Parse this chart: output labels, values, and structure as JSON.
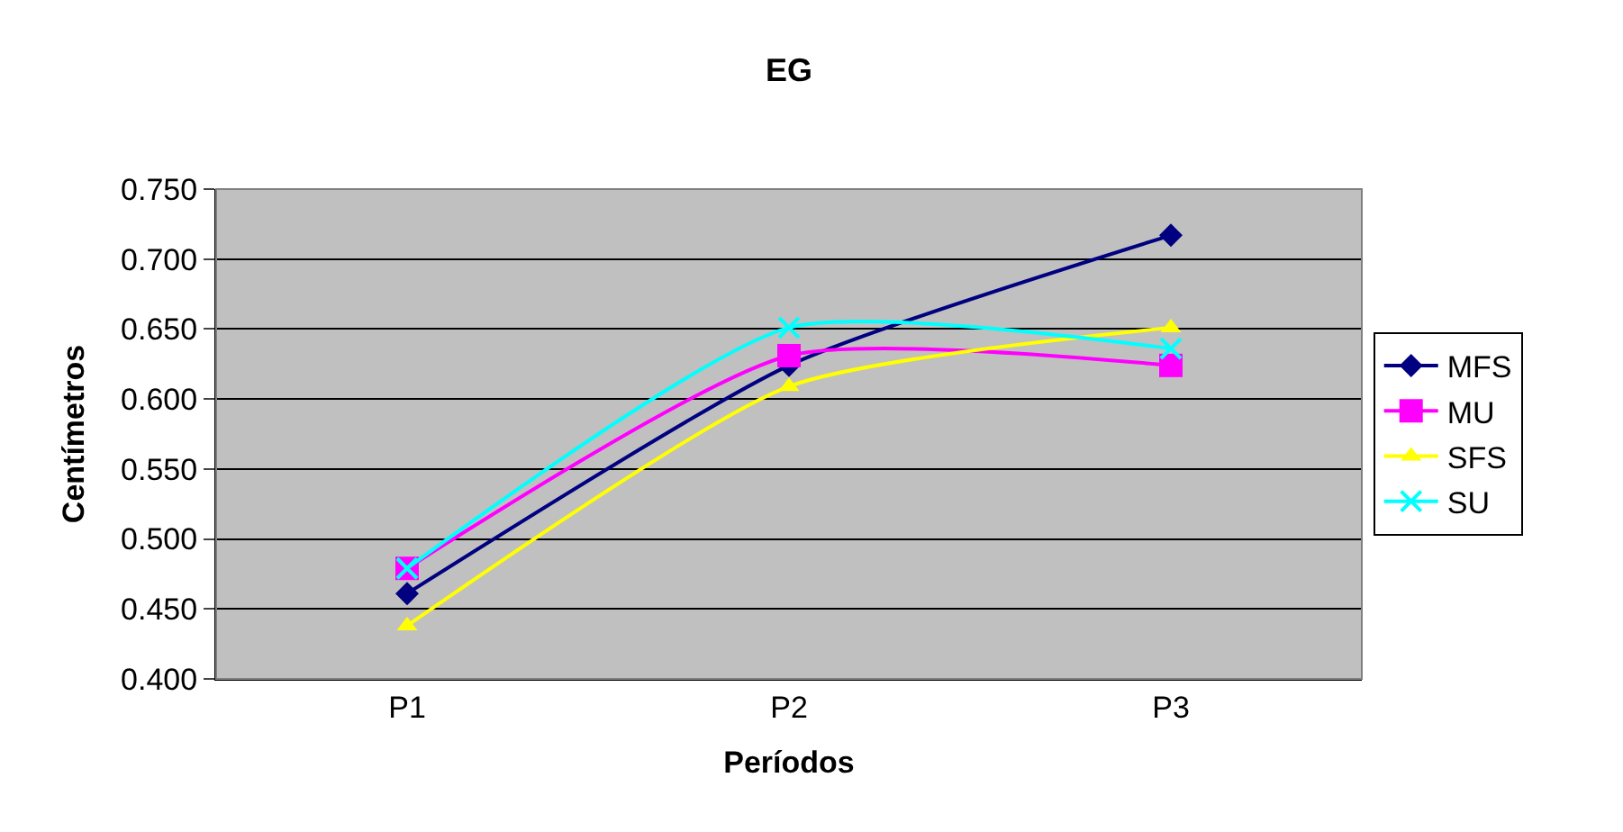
{
  "chart_data": {
    "type": "line",
    "title": "EG",
    "xlabel": "Períodos",
    "ylabel": "Centímetros",
    "categories": [
      "P1",
      "P2",
      "P3"
    ],
    "series": [
      {
        "name": "MFS",
        "color": "#000080",
        "values": [
          0.461,
          0.624,
          0.717
        ],
        "marker": "diamond"
      },
      {
        "name": "MU",
        "color": "#ff00ff",
        "values": [
          0.479,
          0.631,
          0.624
        ],
        "marker": "square"
      },
      {
        "name": "SFS",
        "color": "#ffff00",
        "values": [
          0.438,
          0.609,
          0.651
        ],
        "marker": "triangle"
      },
      {
        "name": "SU",
        "color": "#00ffff",
        "values": [
          0.479,
          0.651,
          0.636
        ],
        "marker": "cross"
      }
    ],
    "ylim": [
      0.4,
      0.75
    ],
    "yticks": [
      {
        "value": 0.4,
        "label": "0.400"
      },
      {
        "value": 0.45,
        "label": "0.450"
      },
      {
        "value": 0.5,
        "label": "0.500"
      },
      {
        "value": 0.55,
        "label": "0.550"
      },
      {
        "value": 0.6,
        "label": "0.600"
      },
      {
        "value": 0.65,
        "label": "0.650"
      },
      {
        "value": 0.7,
        "label": "0.700"
      },
      {
        "value": 0.75,
        "label": "0.750"
      }
    ],
    "grid": "y",
    "legend": "right",
    "line_style": "solid"
  }
}
